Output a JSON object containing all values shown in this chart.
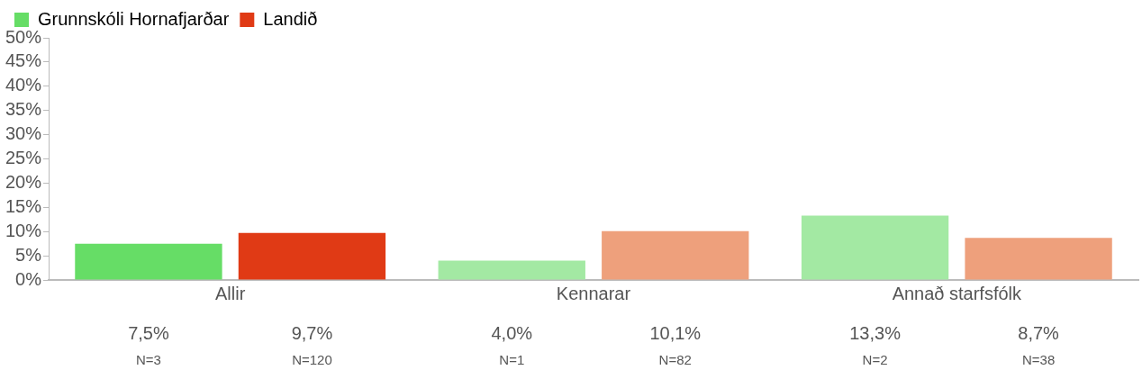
{
  "chart_data": {
    "type": "bar",
    "categories": [
      "Allir",
      "Kennarar",
      "Annað starfsfólk"
    ],
    "series": [
      {
        "name": "Grunnskóli Hornafjarðar",
        "color": "#66dd66",
        "colors": [
          "#66dd66",
          "#a3e9a3",
          "#a3e9a3"
        ],
        "values": [
          7.5,
          4.0,
          13.3
        ],
        "value_labels": [
          "7,5%",
          "4,0%",
          "13,3%"
        ]
      },
      {
        "name": "Landið",
        "color": "#e03a15",
        "colors": [
          "#e03a15",
          "#eea07c",
          "#eea07c"
        ],
        "values": [
          9.7,
          10.1,
          8.7
        ],
        "value_labels": [
          "9,7%",
          "10,1%",
          "8,7%"
        ]
      }
    ],
    "ylim": [
      0,
      50
    ],
    "yticks": [
      {
        "value": 0,
        "label": "0%"
      },
      {
        "value": 5,
        "label": "5%"
      },
      {
        "value": 10,
        "label": "10%"
      },
      {
        "value": 15,
        "label": "15%"
      },
      {
        "value": 20,
        "label": "20%"
      },
      {
        "value": 25,
        "label": "25%"
      },
      {
        "value": 30,
        "label": "30%"
      },
      {
        "value": 35,
        "label": "35%"
      },
      {
        "value": 40,
        "label": "40%"
      },
      {
        "value": 45,
        "label": "45%"
      },
      {
        "value": 50,
        "label": "50%"
      }
    ],
    "annotations": [
      "N=3",
      "N=120",
      "N=1",
      "N=82",
      "N=2",
      "N=38"
    ],
    "grid": false,
    "legend": "top left"
  }
}
